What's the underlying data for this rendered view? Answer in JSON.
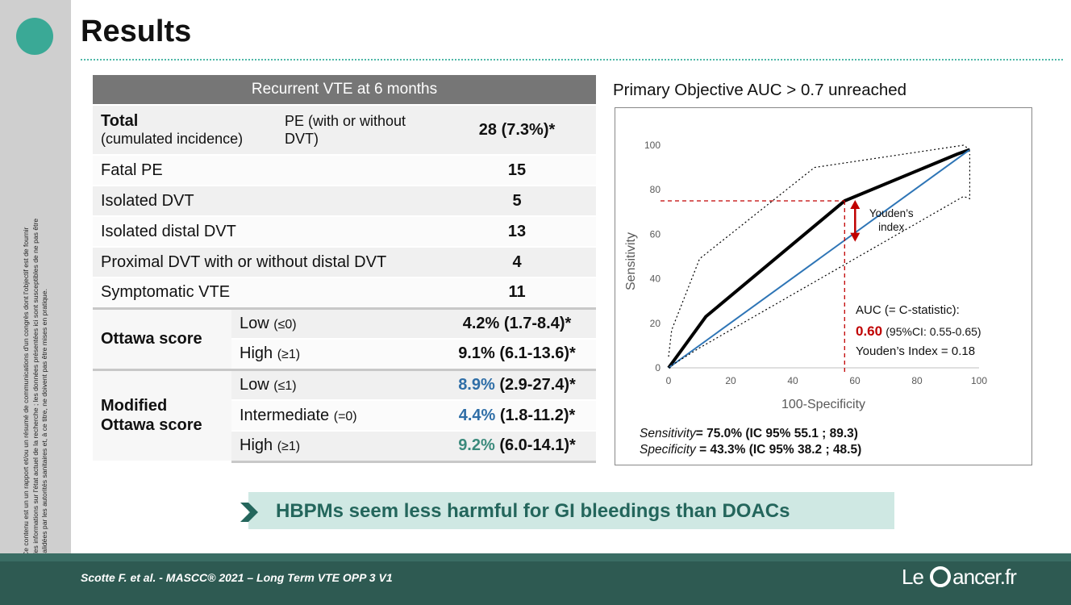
{
  "slide": {
    "title": "Results",
    "sidenote": "Ce contenu est un un rapport et/ou un résumé de communications d'un congrès dont l'objectif est de fournir des informations sur l'état actuel de la recherche ; les données présentées ici sont susceptibles de ne pas être validées par les autorités sanitaires et, à ce titre, ne doivent pas être mises en pratique."
  },
  "table": {
    "header": "Recurrent VTE at 6 months",
    "total_label": "Total",
    "total_sub": "(cumulated incidence)",
    "total_desc": "PE (with or without DVT)",
    "total_value": "28 (7.3%)*",
    "rows": [
      {
        "label": "Fatal PE",
        "value": "15"
      },
      {
        "label": "Isolated DVT",
        "value": "5"
      },
      {
        "label": "Isolated distal DVT",
        "value": "13"
      },
      {
        "label": "Proximal DVT with or without  distal DVT",
        "value": "4"
      },
      {
        "label": "Symptomatic VTE",
        "value": "11"
      }
    ],
    "ottawa": {
      "label": "Ottawa score",
      "rows": [
        {
          "level": "Low",
          "cond": "(≤0)",
          "pct": "4.2%",
          "ci": "(1.7-8.4)*"
        },
        {
          "level": "High",
          "cond": "(≥1)",
          "pct": "9.1%",
          "ci": "(6.1-13.6)*"
        }
      ]
    },
    "modified": {
      "label": "Modified Ottawa score",
      "rows": [
        {
          "level": "Low",
          "cond": "(≤1)",
          "pct": "8.9%",
          "ci": "(2.9-27.4)*"
        },
        {
          "level": "Intermediate",
          "cond": "(=0)",
          "pct": "4.4%",
          "ci": "(1.8-11.2)*"
        },
        {
          "level": "High",
          "cond": "(≥1)",
          "pct": "9.2%",
          "ci": "(6.0-14.1)*"
        }
      ]
    }
  },
  "objective": "Primary Objective AUC > 0.7 unreached",
  "chart_data": {
    "type": "line",
    "xlabel": "100-Specificity",
    "ylabel": "Sensitivity",
    "xlim": [
      0,
      100
    ],
    "ylim": [
      0,
      100
    ],
    "xticks": [
      "0",
      "20",
      "40",
      "60",
      "80",
      "100"
    ],
    "yticks": [
      "0",
      "20",
      "40",
      "60",
      "80",
      "100"
    ],
    "series": [
      {
        "x": [
          0,
          12,
          56.7,
          93,
          97
        ],
        "y": [
          0,
          23,
          75,
          96,
          98
        ]
      },
      {
        "x": [
          0,
          97
        ],
        "y": [
          0,
          98
        ]
      },
      {
        "x": [
          0,
          2,
          10,
          30,
          55,
          95,
          97,
          97
        ],
        "y": [
          0,
          2,
          9,
          25,
          45,
          77,
          76,
          96
        ]
      },
      {
        "x": [
          0,
          1,
          10,
          47,
          95,
          97
        ],
        "y": [
          5,
          17,
          49,
          90,
          100,
          98
        ]
      }
    ],
    "annotations": {
      "youden_label": "Youden’s index",
      "youden_x": 56.7,
      "youden_from": 57,
      "youden_to": 75,
      "auc_label": "AUC (= C-statistic):",
      "auc_value": "0.60",
      "auc_ci": "(95%CI: 0.55-0.65)",
      "youden_value": "Youden’s Index = 0.18",
      "sens_label": "Sensitivity",
      "sens_value": "= 75.0% (IC 95% 55.1 ; 89.3)",
      "spec_label": "Specificity",
      "spec_value": " = 43.3% (IC 95% 38.2 ; 48.5)"
    }
  },
  "callout": "HBPMs seem less harmful for GI bleedings than DOACs",
  "footer": {
    "citation": "Scotte F. et al. - MASCC® 2021 – Long Term VTE OPP 3   V1",
    "logo_left": "Le",
    "logo_right": "ancer.fr"
  },
  "colors": {
    "teal": "#3aa996",
    "blue": "#2f6ea7",
    "red": "#c00000",
    "footer": "#2e5a52"
  }
}
